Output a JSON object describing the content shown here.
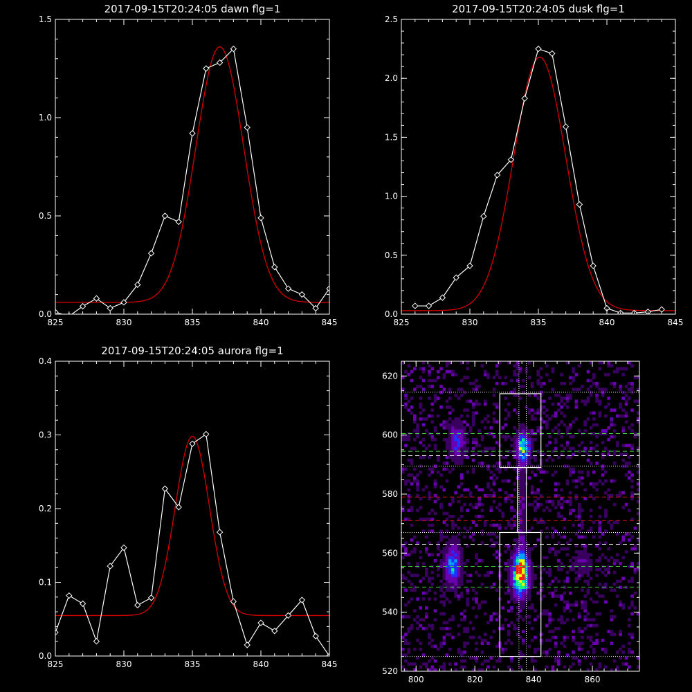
{
  "colors": {
    "background": "#000000",
    "axes": "#ffffff",
    "data_line": "#ffffff",
    "fit_line": "#cc0000"
  },
  "chart_data": [
    {
      "type": "line",
      "title": "2017-09-15T20:24:05 dawn flg=1",
      "xlim": [
        825,
        845
      ],
      "ylim": [
        0,
        1.5
      ],
      "xticks": [
        "825",
        "830",
        "835",
        "840",
        "845"
      ],
      "yticks": [
        "0.0",
        "0.5",
        "1.0",
        "1.5"
      ],
      "series": [
        {
          "marker": "diamond",
          "x": [
            825,
            826,
            827,
            828,
            829,
            830,
            831,
            832,
            833,
            834,
            835,
            836,
            837,
            838,
            839,
            840,
            841,
            842,
            843,
            844,
            845
          ],
          "y": [
            0.01,
            -0.01,
            0.04,
            0.08,
            0.03,
            0.06,
            0.15,
            0.31,
            0.5,
            0.47,
            0.92,
            1.25,
            1.28,
            1.35,
            0.95,
            0.49,
            0.24,
            0.13,
            0.1,
            0.03,
            0.13
          ]
        },
        {
          "function": "gaussian",
          "amplitude": 1.3,
          "center": 837.0,
          "sigma": 1.75,
          "offset": 0.06
        }
      ]
    },
    {
      "type": "line",
      "title": "2017-09-15T20:24:05 dusk flg=1",
      "xlim": [
        825,
        845
      ],
      "ylim": [
        0,
        2.5
      ],
      "xticks": [
        "825",
        "830",
        "835",
        "840",
        "845"
      ],
      "yticks": [
        "0.0",
        "0.5",
        "1.0",
        "1.5",
        "2.0",
        "2.5"
      ],
      "series": [
        {
          "marker": "diamond",
          "x": [
            826,
            827,
            828,
            829,
            830,
            831,
            832,
            833,
            834,
            835,
            836,
            837,
            838,
            839,
            840,
            841,
            842,
            843,
            844
          ],
          "y": [
            0.07,
            0.07,
            0.14,
            0.31,
            0.41,
            0.83,
            1.18,
            1.31,
            1.83,
            2.25,
            2.21,
            1.59,
            0.93,
            0.41,
            0.05,
            0.01,
            0.01,
            0.02,
            0.04
          ]
        },
        {
          "function": "gaussian",
          "amplitude": 2.15,
          "center": 835.1,
          "sigma": 1.9,
          "offset": 0.03
        }
      ]
    },
    {
      "type": "line",
      "title": "2017-09-15T20:24:05 aurora flg=1",
      "xlim": [
        825,
        845
      ],
      "ylim": [
        0,
        0.4
      ],
      "xticks": [
        "825",
        "830",
        "835",
        "840",
        "845"
      ],
      "yticks": [
        "0.0",
        "0.1",
        "0.2",
        "0.3",
        "0.4"
      ],
      "series": [
        {
          "marker": "diamond",
          "x": [
            825,
            826,
            827,
            828,
            829,
            830,
            831,
            832,
            833,
            834,
            835,
            836,
            837,
            838,
            839,
            840,
            841,
            842,
            843,
            844,
            845
          ],
          "y": [
            0.032,
            0.082,
            0.071,
            0.02,
            0.122,
            0.147,
            0.069,
            0.079,
            0.227,
            0.202,
            0.288,
            0.301,
            0.168,
            0.074,
            0.015,
            0.045,
            0.034,
            0.055,
            0.076,
            0.027,
            0.0
          ]
        },
        {
          "function": "gaussian",
          "amplitude": 0.243,
          "center": 835.0,
          "sigma": 1.25,
          "offset": 0.055
        }
      ]
    },
    {
      "type": "heatmap",
      "title": "",
      "xlim": [
        795,
        876
      ],
      "ylim": [
        520,
        625
      ],
      "xticks": [
        "800",
        "820",
        "840",
        "860"
      ],
      "yticks": [
        "520",
        "540",
        "560",
        "580",
        "600",
        "620"
      ],
      "colorscale": [
        "#000000",
        "#3a0060",
        "#6a00b0",
        "#2030ff",
        "#00a0ff",
        "#00ff80",
        "#f0ff00",
        "#ff2000"
      ],
      "blobs": [
        {
          "x": 836.5,
          "y": 596,
          "sx": 1.6,
          "sy": 3.5,
          "peak": 0.7
        },
        {
          "x": 835.5,
          "y": 553,
          "sx": 2.0,
          "sy": 5.0,
          "peak": 1.0
        },
        {
          "x": 812.5,
          "y": 556,
          "sx": 2.0,
          "sy": 5.0,
          "peak": 0.55
        },
        {
          "x": 814.0,
          "y": 598,
          "sx": 2.0,
          "sy": 4.5,
          "peak": 0.4
        },
        {
          "x": 857.0,
          "y": 557,
          "sx": 2.0,
          "sy": 3.0,
          "peak": 0.25
        },
        {
          "x": 836.0,
          "y": 576,
          "sx": 0.8,
          "sy": 14.0,
          "peak": 0.25
        }
      ],
      "boxes": [
        {
          "x0": 828.5,
          "x1": 842.5,
          "y0": 589,
          "y1": 614
        },
        {
          "x0": 834.5,
          "x1": 837.5,
          "y0": 567,
          "y1": 589
        },
        {
          "x0": 828.5,
          "x1": 842.5,
          "y0": 525,
          "y1": 567
        }
      ],
      "hlines_white_dotted": [
        614.5,
        589.5,
        567,
        525
      ],
      "hlines_white_dashed": [
        593,
        563
      ],
      "hlines_green_dashed": [
        600.5,
        594.5,
        555.5,
        548.5
      ],
      "hlines_red_dashed": [
        579,
        571
      ],
      "vlines_white_dotted": [
        835,
        837.5
      ]
    }
  ]
}
